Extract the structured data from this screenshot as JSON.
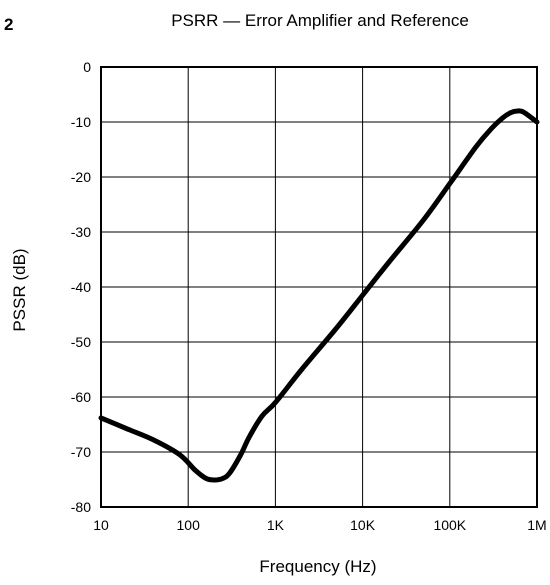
{
  "figure_number": "2",
  "chart_data": {
    "type": "line",
    "title": "PSRR — Error Amplifier and Reference",
    "xlabel": "Frequency (Hz)",
    "ylabel": "PSSR (dB)",
    "x_scale": "log",
    "xlim": [
      10,
      1000000
    ],
    "ylim": [
      -80,
      0
    ],
    "x_ticks": [
      10,
      100,
      1000,
      10000,
      100000,
      1000000
    ],
    "x_tick_labels": [
      "10",
      "100",
      "1K",
      "10K",
      "100K",
      "1M"
    ],
    "y_ticks": [
      0,
      -10,
      -20,
      -30,
      -40,
      -50,
      -60,
      -70,
      -80
    ],
    "y_tick_labels": [
      "0",
      "-10",
      "-20",
      "-30",
      "-40",
      "-50",
      "-60",
      "-70",
      "-80"
    ],
    "grid": true,
    "line_color": "#000000",
    "series": [
      {
        "x": [
          10,
          20,
          40,
          80,
          120,
          160,
          200,
          250,
          300,
          400,
          500,
          700,
          1000,
          2000,
          5000,
          10000,
          20000,
          50000,
          100000,
          200000,
          300000,
          400000,
          500000,
          600000,
          700000,
          1000000
        ],
        "y": [
          -63.8,
          -65.8,
          -67.8,
          -70.5,
          -73.3,
          -74.8,
          -75.1,
          -74.8,
          -73.8,
          -70.5,
          -67.3,
          -63.5,
          -61.0,
          -55.0,
          -47.5,
          -41.5,
          -35.5,
          -27.8,
          -21.2,
          -14.5,
          -11.2,
          -9.3,
          -8.3,
          -8.0,
          -8.2,
          -10.0
        ]
      }
    ]
  }
}
